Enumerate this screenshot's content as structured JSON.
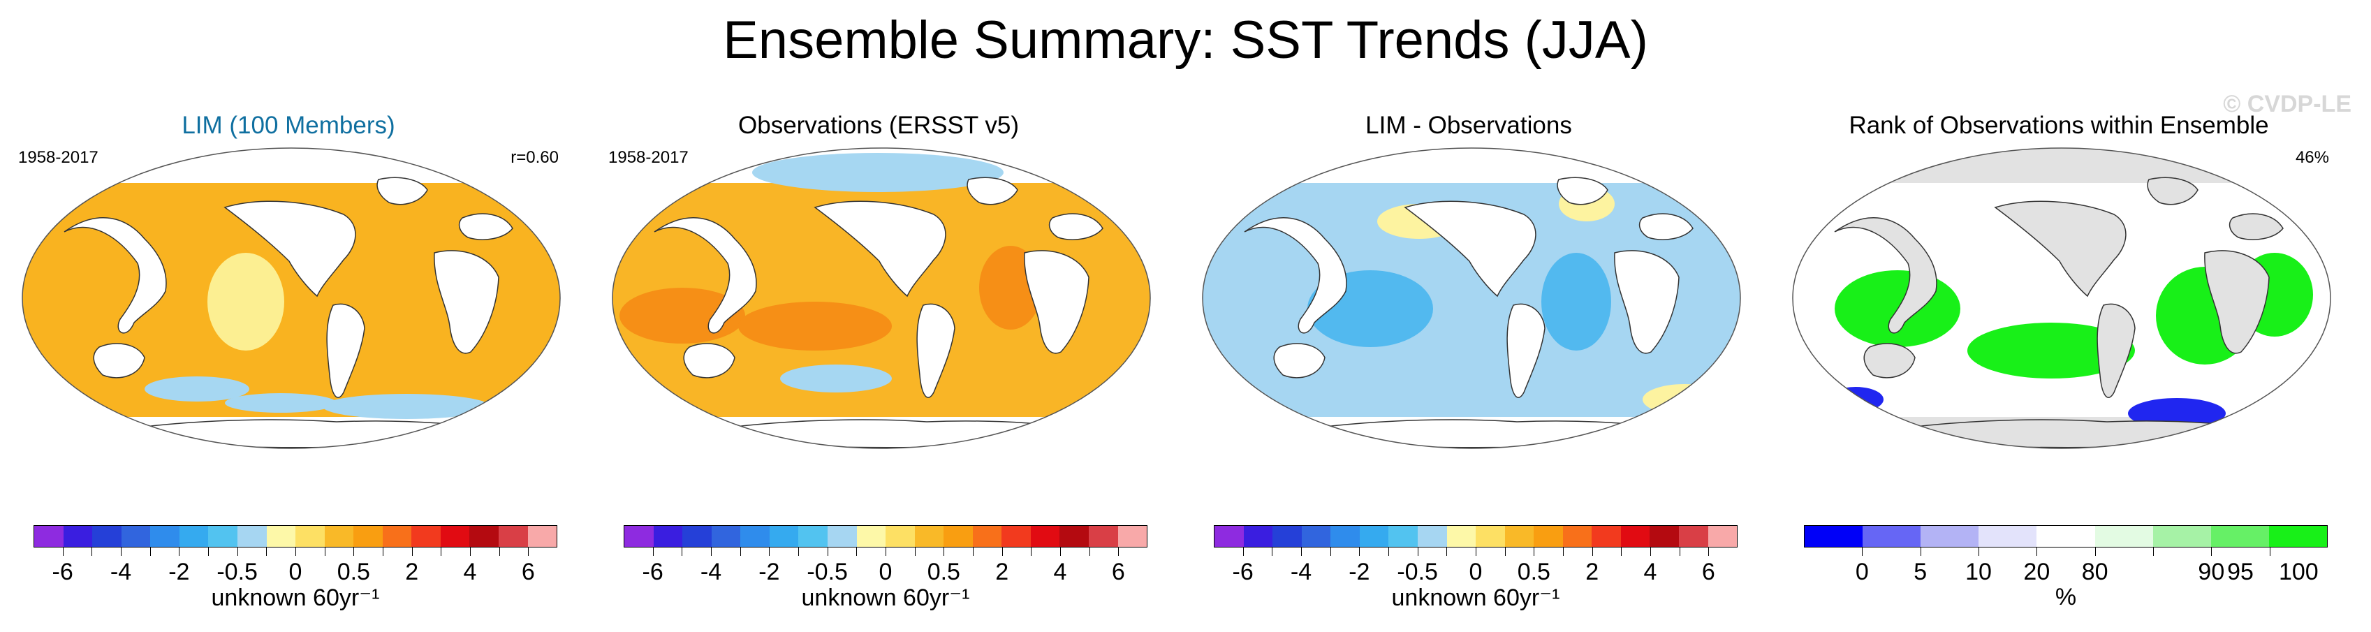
{
  "title": "Ensemble Summary: SST Trends (JJA)",
  "watermark": "© CVDP-LE",
  "panels": [
    {
      "title": "LIM (100 Members)",
      "left_label": "1958-2017",
      "right_label": "r=0.60",
      "field_color": "#f9b320",
      "highlight_color": "#fcef92",
      "cold_color": "#a6d7f2",
      "colorbar": {
        "colors": [
          "#8e2be0",
          "#3a1ee0",
          "#2540d8",
          "#3165de",
          "#2f8cec",
          "#35aaef",
          "#52c3f0",
          "#a6d6f2",
          "#fdf8a8",
          "#fde064",
          "#f9b928",
          "#f99e11",
          "#f8701a",
          "#f23a1e",
          "#e10b12",
          "#b40a10",
          "#d93f46",
          "#f8a9a9"
        ],
        "labels": [
          "-6",
          "-4",
          "-2",
          "-0.5",
          "0",
          "0.5",
          "2",
          "4",
          "6"
        ],
        "units": "unknown 60yr⁻¹"
      }
    },
    {
      "title": "Observations (ERSST v5)",
      "left_label": "1958-2017",
      "right_label": "",
      "field_color": "#f9b526",
      "highlight_color": "#f68f16",
      "cold_color": "#a6d7f2",
      "colorbar": {
        "colors": [
          "#8e2be0",
          "#3a1ee0",
          "#2540d8",
          "#3165de",
          "#2f8cec",
          "#35aaef",
          "#52c3f0",
          "#a6d6f2",
          "#fdf8a8",
          "#fde064",
          "#f9b928",
          "#f99e11",
          "#f8701a",
          "#f23a1e",
          "#e10b12",
          "#b40a10",
          "#d93f46",
          "#f8a9a9"
        ],
        "labels": [
          "-6",
          "-4",
          "-2",
          "-0.5",
          "0",
          "0.5",
          "2",
          "4",
          "6"
        ],
        "units": "unknown 60yr⁻¹"
      }
    },
    {
      "title": "LIM - Observations",
      "left_label": "",
      "right_label": "",
      "field_color": "#a6d6f2",
      "highlight_color": "#52b9ef",
      "cold_color": "#fdf3a0",
      "colorbar": {
        "colors": [
          "#8e2be0",
          "#3a1ee0",
          "#2540d8",
          "#3165de",
          "#2f8cec",
          "#35aaef",
          "#52c3f0",
          "#a6d6f2",
          "#fdf8a8",
          "#fde064",
          "#f9b928",
          "#f99e11",
          "#f8701a",
          "#f23a1e",
          "#e10b12",
          "#b40a10",
          "#d93f46",
          "#f8a9a9"
        ],
        "labels": [
          "-6",
          "-4",
          "-2",
          "-0.5",
          "0",
          "0.5",
          "2",
          "4",
          "6"
        ],
        "units": "unknown 60yr⁻¹"
      }
    },
    {
      "title": "Rank of Observations within Ensemble",
      "left_label": "",
      "right_label": "46%",
      "field_color": "#ffffff",
      "highlight_color": "#18f018",
      "cold_color": "#2026f0",
      "colorbar": {
        "colors": [
          "#0000f8",
          "#6666f5",
          "#b3b3f5",
          "#e3e3fb",
          "#ffffff",
          "#e3fbe3",
          "#a6f2a6",
          "#66f066",
          "#18f018"
        ],
        "labels": [
          "0",
          "5",
          "10",
          "20",
          "80",
          "90",
          "95",
          "100"
        ],
        "units": "%"
      }
    }
  ]
}
